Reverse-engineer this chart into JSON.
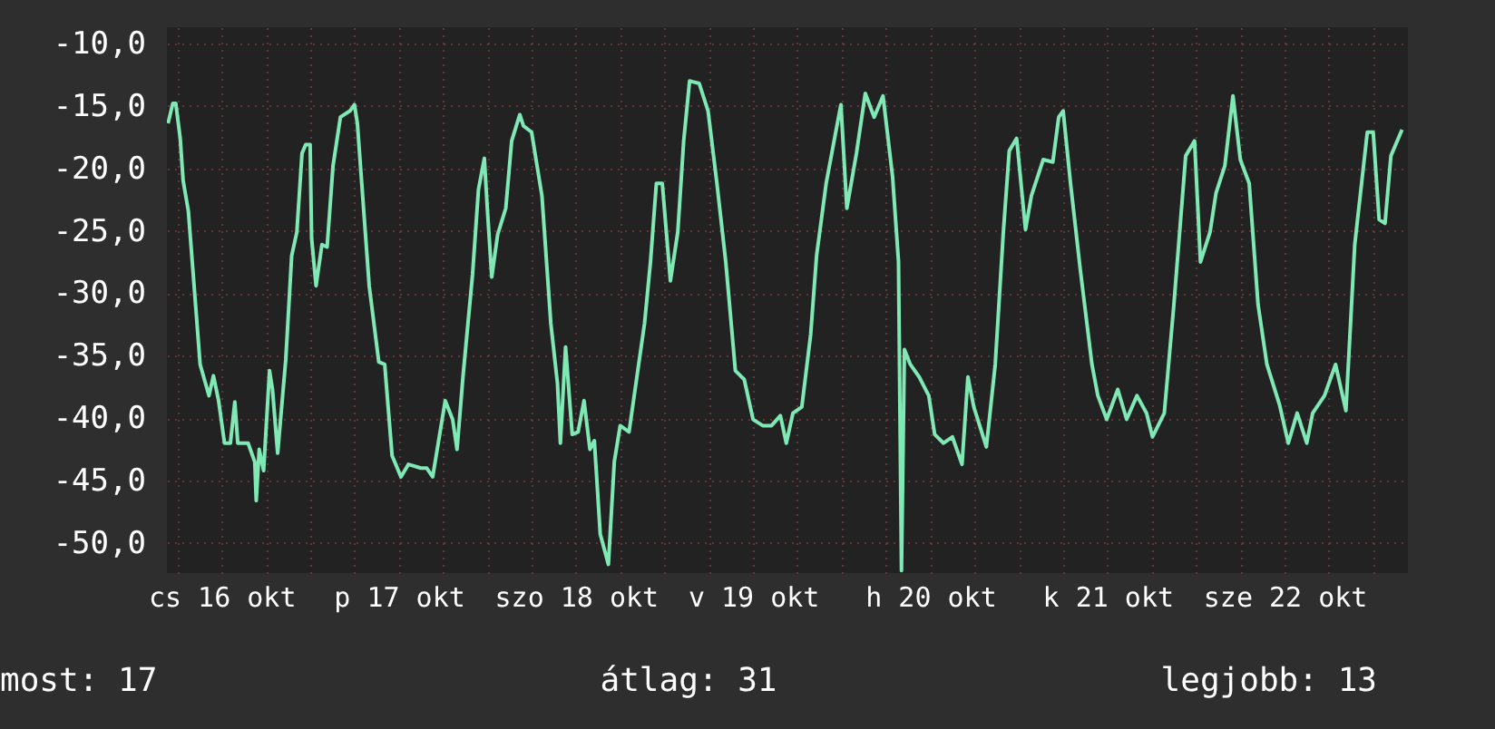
{
  "chart_data": {
    "type": "line",
    "annotations": [
      "most: 17",
      "átlag: 31",
      "legjobb: 13"
    ],
    "xlim": [
      "--10-16T04:36",
      "--10-23T04:42"
    ],
    "ylim": [
      -52.4,
      -8.7
    ],
    "xticks": [
      {
        "value": "--10-16T06:00",
        "label": null
      },
      {
        "value": "--10-16T12:00",
        "label": "cs 16 okt"
      },
      {
        "value": "--10-16T18:00",
        "label": null
      },
      {
        "value": "--10-17T00:00",
        "label": null
      },
      {
        "value": "--10-17T06:00",
        "label": null
      },
      {
        "value": "--10-17T12:00",
        "label": "p 17 okt"
      },
      {
        "value": "--10-17T18:00",
        "label": null
      },
      {
        "value": "--10-18T00:00",
        "label": null
      },
      {
        "value": "--10-18T06:00",
        "label": null
      },
      {
        "value": "--10-18T12:00",
        "label": "szo 18 okt"
      },
      {
        "value": "--10-18T18:00",
        "label": null
      },
      {
        "value": "--10-19T00:00",
        "label": null
      },
      {
        "value": "--10-19T06:00",
        "label": null
      },
      {
        "value": "--10-19T12:00",
        "label": "v 19 okt"
      },
      {
        "value": "--10-19T18:00",
        "label": null
      },
      {
        "value": "--10-20T00:00",
        "label": null
      },
      {
        "value": "--10-20T06:00",
        "label": null
      },
      {
        "value": "--10-20T12:00",
        "label": "h 20 okt"
      },
      {
        "value": "--10-20T18:00",
        "label": null
      },
      {
        "value": "--10-21T00:00",
        "label": null
      },
      {
        "value": "--10-21T06:00",
        "label": null
      },
      {
        "value": "--10-21T12:00",
        "label": "k 21 okt"
      },
      {
        "value": "--10-21T18:00",
        "label": null
      },
      {
        "value": "--10-22T00:00",
        "label": null
      },
      {
        "value": "--10-22T06:00",
        "label": null
      },
      {
        "value": "--10-22T12:00",
        "label": "sze 22 okt"
      },
      {
        "value": "--10-22T18:00",
        "label": null
      },
      {
        "value": "--10-23T00:00",
        "label": null
      }
    ],
    "yticks": [
      {
        "value": -10,
        "label": "-10,0"
      },
      {
        "value": -15,
        "label": "-15,0"
      },
      {
        "value": -20,
        "label": "-20,0"
      },
      {
        "value": -25,
        "label": "-25,0"
      },
      {
        "value": -30,
        "label": "-30,0"
      },
      {
        "value": -35,
        "label": "-35,0"
      },
      {
        "value": -40,
        "label": "-40,0"
      },
      {
        "value": -45,
        "label": "-45,0"
      },
      {
        "value": -50,
        "label": "-50,0"
      }
    ],
    "grid": true,
    "series": [
      {
        "color": "#7fe8b4",
        "x": [
          "--10-16T04:45",
          "--10-16T05:24",
          "--10-16T05:48",
          "--10-16T06:24",
          "--10-16T06:48",
          "--10-16T07:30",
          "--10-16T08:06",
          "--10-16T09:06",
          "--10-16T10:18",
          "--10-16T10:54",
          "--10-16T11:36",
          "--10-16T12:24",
          "--10-16T13:12",
          "--10-16T13:48",
          "--10-16T14:12",
          "--10-16T15:36",
          "--10-16T16:30",
          "--10-16T16:42",
          "--10-16T17:06",
          "--10-16T17:42",
          "--10-16T18:30",
          "--10-16T18:54",
          "--10-16T19:36",
          "--10-16T20:42",
          "--10-16T21:30",
          "--10-16T22:12",
          "--10-16T22:54",
          "--10-16T23:24",
          "--10-17T00:00",
          "--10-17T00:12",
          "--10-17T00:48",
          "--10-17T01:36",
          "--10-17T02:18",
          "--10-17T03:06",
          "--10-17T04:06",
          "--10-17T05:24",
          "--10-17T06:00",
          "--10-17T06:24",
          "--10-17T08:00",
          "--10-17T09:18",
          "--10-17T10:06",
          "--10-17T11:06",
          "--10-17T12:18",
          "--10-17T13:18",
          "--10-17T15:00",
          "--10-17T15:48",
          "--10-17T16:36",
          "--10-17T18:18",
          "--10-17T19:18",
          "--10-17T19:54",
          "--10-17T20:42",
          "--10-17T22:00",
          "--10-17T22:48",
          "--10-17T23:36",
          "--10-18T00:00",
          "--10-18T00:36",
          "--10-18T01:24",
          "--10-18T02:30",
          "--10-18T03:18",
          "--10-18T04:24",
          "--10-18T04:54",
          "--10-18T06:00",
          "--10-18T06:36",
          "--10-18T07:24",
          "--10-18T08:36",
          "--10-18T09:30",
          "--10-18T09:54",
          "--10-18T10:36",
          "--10-18T11:30",
          "--10-18T12:18",
          "--10-18T13:06",
          "--10-18T13:54",
          "--10-18T14:30",
          "--10-18T15:18",
          "--10-18T16:24",
          "--10-18T17:12",
          "--10-18T18:00",
          "--10-18T19:12",
          "--10-18T20:30",
          "--10-18T21:18",
          "--10-18T22:06",
          "--10-18T22:54",
          "--10-18T23:42",
          "--10-19T00:48",
          "--10-19T01:48",
          "--10-19T02:36",
          "--10-19T03:24",
          "--10-19T04:42",
          "--10-19T05:54",
          "--10-19T07:06",
          "--10-19T08:18",
          "--10-19T09:36",
          "--10-19T10:48",
          "--10-19T12:00",
          "--10-19T13:18",
          "--10-19T14:30",
          "--10-19T15:42",
          "--10-19T16:30",
          "--10-19T17:24",
          "--10-19T18:36",
          "--10-19T19:48",
          "--10-19T20:36",
          "--10-19T21:54",
          "--10-19T23:06",
          "--10-19T23:54",
          "--10-20T00:42",
          "--10-20T02:00",
          "--10-20T03:12",
          "--10-20T04:24",
          "--10-20T05:36",
          "--10-20T06:54",
          "--10-20T07:42",
          "--10-20T08:06",
          "--10-20T08:30",
          "--10-20T09:18",
          "--10-20T10:30",
          "--10-20T11:48",
          "--10-20T12:36",
          "--10-20T13:48",
          "--10-20T15:00",
          "--10-20T16:18",
          "--10-20T17:06",
          "--10-20T17:54",
          "--10-20T19:36",
          "--10-20T20:48",
          "--10-20T21:54",
          "--10-20T22:42",
          "--10-20T23:42",
          "--10-21T00:54",
          "--10-21T01:42",
          "--10-21T03:18",
          "--10-21T04:36",
          "--10-21T05:24",
          "--10-21T06:00",
          "--10-21T07:00",
          "--10-21T08:18",
          "--10-21T09:54",
          "--10-21T10:42",
          "--10-21T11:54",
          "--10-21T13:24",
          "--10-21T14:36",
          "--10-21T16:00",
          "--10-21T17:18",
          "--10-21T18:06",
          "--10-21T19:42",
          "--10-21T21:00",
          "--10-21T22:36",
          "--10-21T23:48",
          "--10-22T00:36",
          "--10-22T01:54",
          "--10-22T02:42",
          "--10-22T03:54",
          "--10-22T05:00",
          "--10-22T06:00",
          "--10-22T07:12",
          "--10-22T08:24",
          "--10-22T09:36",
          "--10-22T11:18",
          "--10-22T12:30",
          "--10-22T13:42",
          "--10-22T15:00",
          "--10-22T15:48",
          "--10-22T17:24",
          "--10-22T18:54",
          "--10-22T20:18",
          "--10-22T21:30",
          "--10-22T23:12",
          "--10-23T00:00",
          "--10-23T00:48",
          "--10-23T01:36",
          "--10-23T02:24",
          "--10-23T03:54"
        ],
        "values": [
          -16.4,
          -14.8,
          -14.8,
          -17.6,
          -21.0,
          -23.4,
          -28.0,
          -35.7,
          -38.2,
          -36.6,
          -38.6,
          -42.0,
          -42.0,
          -38.7,
          -42.0,
          -42.0,
          -43.5,
          -46.6,
          -42.5,
          -44.2,
          -36.2,
          -37.7,
          -42.8,
          -35.3,
          -27.0,
          -25.1,
          -18.8,
          -18.1,
          -18.1,
          -25.6,
          -29.4,
          -26.1,
          -26.3,
          -19.8,
          -15.9,
          -15.4,
          -14.9,
          -16.4,
          -29.4,
          -35.5,
          -35.7,
          -43.0,
          -44.7,
          -43.7,
          -44.0,
          -44.0,
          -44.7,
          -38.6,
          -40.1,
          -42.5,
          -36.7,
          -28.5,
          -21.7,
          -19.2,
          -23.2,
          -28.7,
          -25.3,
          -23.2,
          -17.8,
          -15.7,
          -16.6,
          -17.1,
          -19.3,
          -22.2,
          -32.4,
          -37.2,
          -42.0,
          -34.3,
          -41.3,
          -41.1,
          -38.6,
          -42.5,
          -41.8,
          -49.3,
          -51.7,
          -43.5,
          -40.6,
          -41.1,
          -35.7,
          -32.4,
          -27.5,
          -21.2,
          -21.2,
          -29.0,
          -25.1,
          -17.8,
          -13.0,
          -13.2,
          -15.4,
          -21.2,
          -27.5,
          -36.2,
          -36.9,
          -40.1,
          -40.6,
          -40.6,
          -39.8,
          -42.0,
          -39.6,
          -39.1,
          -33.3,
          -27.0,
          -21.2,
          -17.4,
          -14.9,
          -23.2,
          -18.8,
          -14.0,
          -15.9,
          -14.2,
          -20.7,
          -27.5,
          -52.2,
          -34.5,
          -35.7,
          -36.7,
          -38.2,
          -41.3,
          -42.0,
          -41.5,
          -43.7,
          -36.7,
          -39.1,
          -42.3,
          -35.7,
          -25.1,
          -18.6,
          -17.6,
          -24.9,
          -22.2,
          -19.3,
          -19.5,
          -15.9,
          -15.4,
          -21.2,
          -28.0,
          -35.7,
          -38.2,
          -40.1,
          -37.7,
          -40.1,
          -38.2,
          -39.6,
          -41.5,
          -39.6,
          -30.9,
          -19.0,
          -17.8,
          -27.5,
          -25.1,
          -22.0,
          -19.8,
          -14.2,
          -19.3,
          -21.2,
          -30.9,
          -35.7,
          -38.9,
          -42.0,
          -39.6,
          -42.0,
          -39.6,
          -38.2,
          -35.7,
          -39.4,
          -26.1,
          -17.1,
          -17.1,
          -24.1,
          -24.4,
          -19.0,
          -16.9
        ]
      }
    ]
  }
}
